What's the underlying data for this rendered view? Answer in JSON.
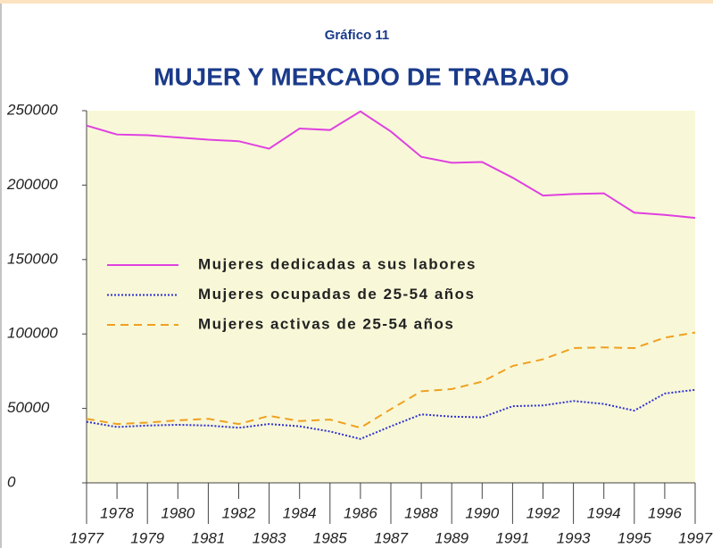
{
  "chart_data": {
    "type": "line",
    "subtitle": "Gráfico 11",
    "title": "MUJER Y MERCADO DE TRABAJO",
    "x": [
      1977,
      1978,
      1979,
      1980,
      1981,
      1982,
      1983,
      1984,
      1985,
      1986,
      1987,
      1988,
      1989,
      1990,
      1991,
      1992,
      1993,
      1994,
      1995,
      1996,
      1997
    ],
    "xlim": [
      1977,
      1997
    ],
    "xticks": [
      1977,
      1978,
      1979,
      1980,
      1981,
      1982,
      1983,
      1984,
      1985,
      1986,
      1987,
      1988,
      1989,
      1990,
      1991,
      1992,
      1993,
      1994,
      1995,
      1996,
      1997
    ],
    "ylim": [
      0,
      250000
    ],
    "yticks": [
      0,
      50000,
      100000,
      150000,
      200000,
      250000
    ],
    "series": [
      {
        "name": "Mujeres dedicadas a sus labores",
        "color": "#e040e0",
        "style": "solid",
        "values": [
          240000,
          234000,
          233500,
          232000,
          230500,
          229500,
          224500,
          238000,
          237000,
          249500,
          236000,
          219000,
          215000,
          215500,
          205000,
          193000,
          194000,
          194500,
          181500,
          180000,
          178000
        ]
      },
      {
        "name": "Mujeres ocupadas de 25-54 años",
        "color": "#3030d0",
        "style": "dotted",
        "values": [
          41000,
          37500,
          38500,
          39000,
          38500,
          37000,
          39500,
          38000,
          34500,
          29500,
          38000,
          46000,
          44500,
          44000,
          51500,
          52000,
          55000,
          53000,
          48500,
          60000,
          62500
        ]
      },
      {
        "name": "Mujeres activas de 25-54 años",
        "color": "#f0a020",
        "style": "dashed",
        "values": [
          43000,
          39500,
          40500,
          42000,
          43000,
          39500,
          45000,
          41500,
          42500,
          37000,
          49500,
          61500,
          63000,
          68000,
          78500,
          83000,
          90500,
          91000,
          90500,
          97500,
          101000
        ]
      }
    ]
  }
}
